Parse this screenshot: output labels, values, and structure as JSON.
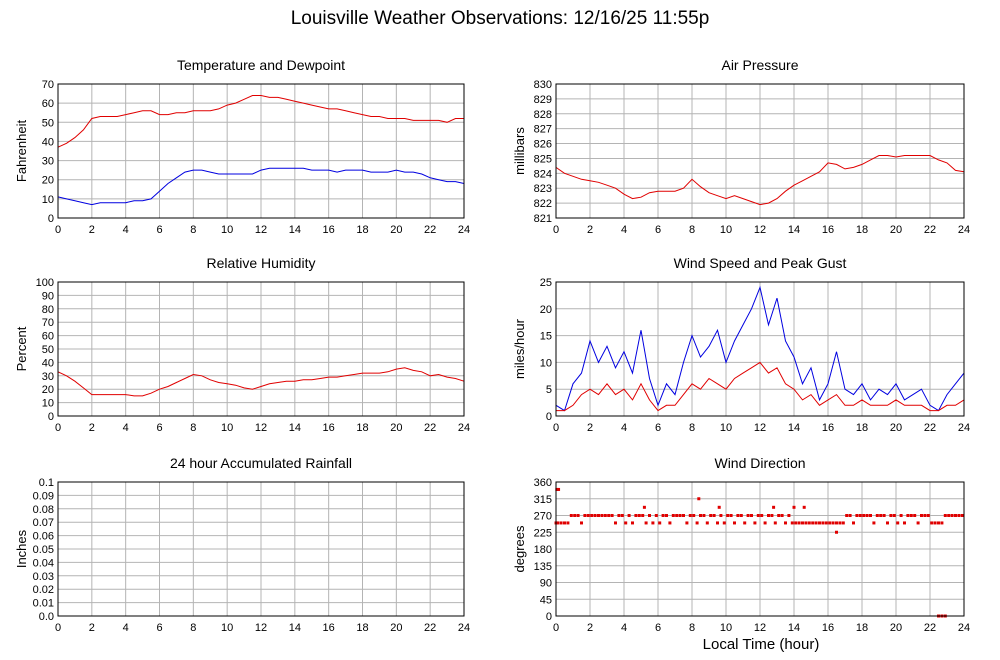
{
  "title": "Louisville Weather Observations: 12/16/25 11:55p",
  "xlabel_shared": "Local Time (hour)",
  "colors": {
    "red": "#e00000",
    "blue": "#0000e0",
    "grid": "#b4b4b4"
  },
  "chart_data": [
    {
      "id": "temp",
      "type": "line",
      "title": "Temperature and Dewpoint",
      "xlabel": "",
      "ylabel": "Fahrenheit",
      "xlim": [
        0,
        24
      ],
      "ylim": [
        0,
        70
      ],
      "xticks": [
        "0",
        "2",
        "4",
        "6",
        "8",
        "10",
        "12",
        "14",
        "16",
        "18",
        "20",
        "22",
        "24"
      ],
      "yticks": [
        "0",
        "10",
        "20",
        "30",
        "40",
        "50",
        "60",
        "70"
      ],
      "series": [
        {
          "color": "#e00000",
          "x": [
            0,
            0.5,
            1,
            1.5,
            2,
            2.5,
            3,
            3.5,
            4,
            4.5,
            5,
            5.5,
            6,
            6.5,
            7,
            7.5,
            8,
            8.5,
            9,
            9.5,
            10,
            10.5,
            11,
            11.5,
            12,
            12.5,
            13,
            13.5,
            14,
            14.5,
            15,
            15.5,
            16,
            16.5,
            17,
            17.5,
            18,
            18.5,
            19,
            19.5,
            20,
            20.5,
            21,
            21.5,
            22,
            22.5,
            23,
            23.5,
            24
          ],
          "y": [
            37,
            39,
            42,
            46,
            52,
            53,
            53,
            53,
            54,
            55,
            56,
            56,
            54,
            54,
            55,
            55,
            56,
            56,
            56,
            57,
            59,
            60,
            62,
            64,
            64,
            63,
            63,
            62,
            61,
            60,
            59,
            58,
            57,
            57,
            56,
            55,
            54,
            53,
            53,
            52,
            52,
            52,
            51,
            51,
            51,
            51,
            50,
            52,
            52
          ]
        },
        {
          "color": "#0000e0",
          "x": [
            0,
            0.5,
            1,
            1.5,
            2,
            2.5,
            3,
            3.5,
            4,
            4.5,
            5,
            5.5,
            6,
            6.5,
            7,
            7.5,
            8,
            8.5,
            9,
            9.5,
            10,
            10.5,
            11,
            11.5,
            12,
            12.5,
            13,
            13.5,
            14,
            14.5,
            15,
            15.5,
            16,
            16.5,
            17,
            17.5,
            18,
            18.5,
            19,
            19.5,
            20,
            20.5,
            21,
            21.5,
            22,
            22.5,
            23,
            23.5,
            24
          ],
          "y": [
            11,
            10,
            9,
            8,
            7,
            8,
            8,
            8,
            8,
            9,
            9,
            10,
            14,
            18,
            21,
            24,
            25,
            25,
            24,
            23,
            23,
            23,
            23,
            23,
            25,
            26,
            26,
            26,
            26,
            26,
            25,
            25,
            25,
            24,
            25,
            25,
            25,
            24,
            24,
            24,
            25,
            24,
            24,
            23,
            21,
            20,
            19,
            19,
            18
          ]
        }
      ]
    },
    {
      "id": "pressure",
      "type": "line",
      "title": "Air Pressure",
      "xlabel": "",
      "ylabel": "millibars",
      "xlim": [
        0,
        24
      ],
      "ylim": [
        821,
        830
      ],
      "xticks": [
        "0",
        "2",
        "4",
        "6",
        "8",
        "10",
        "12",
        "14",
        "16",
        "18",
        "20",
        "22",
        "24"
      ],
      "yticks": [
        "821",
        "822",
        "823",
        "824",
        "825",
        "826",
        "827",
        "828",
        "829",
        "830"
      ],
      "series": [
        {
          "color": "#e00000",
          "x": [
            0,
            0.5,
            1,
            1.5,
            2,
            2.5,
            3,
            3.5,
            4,
            4.5,
            5,
            5.5,
            6,
            6.5,
            7,
            7.5,
            8,
            8.5,
            9,
            9.5,
            10,
            10.5,
            11,
            11.5,
            12,
            12.5,
            13,
            13.5,
            14,
            14.5,
            15,
            15.5,
            16,
            16.5,
            17,
            17.5,
            18,
            18.5,
            19,
            19.5,
            20,
            20.5,
            21,
            21.5,
            22,
            22.5,
            23,
            23.5,
            24
          ],
          "y": [
            824.4,
            824,
            823.8,
            823.6,
            823.5,
            823.4,
            823.2,
            823,
            822.6,
            822.3,
            822.4,
            822.7,
            822.8,
            822.8,
            822.8,
            823,
            823.6,
            823.1,
            822.7,
            822.5,
            822.3,
            822.5,
            822.3,
            822.1,
            821.9,
            822,
            822.3,
            822.8,
            823.2,
            823.5,
            823.8,
            824.1,
            824.7,
            824.6,
            824.3,
            824.4,
            824.6,
            824.9,
            825.2,
            825.2,
            825.1,
            825.2,
            825.2,
            825.2,
            825.2,
            824.9,
            824.7,
            824.2,
            824.1
          ]
        }
      ]
    },
    {
      "id": "humidity",
      "type": "line",
      "title": "Relative Humidity",
      "xlabel": "",
      "ylabel": "Percent",
      "xlim": [
        0,
        24
      ],
      "ylim": [
        0,
        100
      ],
      "xticks": [
        "0",
        "2",
        "4",
        "6",
        "8",
        "10",
        "12",
        "14",
        "16",
        "18",
        "20",
        "22",
        "24"
      ],
      "yticks": [
        "0",
        "10",
        "20",
        "30",
        "40",
        "50",
        "60",
        "70",
        "80",
        "90",
        "100"
      ],
      "series": [
        {
          "color": "#e00000",
          "x": [
            0,
            0.5,
            1,
            1.5,
            2,
            2.5,
            3,
            3.5,
            4,
            4.5,
            5,
            5.5,
            6,
            6.5,
            7,
            7.5,
            8,
            8.5,
            9,
            9.5,
            10,
            10.5,
            11,
            11.5,
            12,
            12.5,
            13,
            13.5,
            14,
            14.5,
            15,
            15.5,
            16,
            16.5,
            17,
            17.5,
            18,
            18.5,
            19,
            19.5,
            20,
            20.5,
            21,
            21.5,
            22,
            22.5,
            23,
            23.5,
            24
          ],
          "y": [
            33,
            30,
            26,
            21,
            16,
            16,
            16,
            16,
            16,
            15,
            15,
            17,
            20,
            22,
            25,
            28,
            31,
            30,
            27,
            25,
            24,
            23,
            21,
            20,
            22,
            24,
            25,
            26,
            26,
            27,
            27,
            28,
            29,
            29,
            30,
            31,
            32,
            32,
            32,
            33,
            35,
            36,
            34,
            33,
            30,
            31,
            29,
            28,
            26
          ]
        }
      ]
    },
    {
      "id": "wind",
      "type": "line",
      "title": "Wind Speed and Peak Gust",
      "xlabel": "",
      "ylabel": "miles/hour",
      "xlim": [
        0,
        24
      ],
      "ylim": [
        0,
        25
      ],
      "xticks": [
        "0",
        "2",
        "4",
        "6",
        "8",
        "10",
        "12",
        "14",
        "16",
        "18",
        "20",
        "22",
        "24"
      ],
      "yticks": [
        "0",
        "5",
        "10",
        "15",
        "20",
        "25"
      ],
      "series": [
        {
          "color": "#0000e0",
          "x": [
            0,
            0.5,
            1,
            1.5,
            2,
            2.5,
            3,
            3.5,
            4,
            4.5,
            5,
            5.5,
            6,
            6.5,
            7,
            7.5,
            8,
            8.5,
            9,
            9.5,
            10,
            10.5,
            11,
            11.5,
            12,
            12.5,
            13,
            13.5,
            14,
            14.5,
            15,
            15.5,
            16,
            16.5,
            17,
            17.5,
            18,
            18.5,
            19,
            19.5,
            20,
            20.5,
            21,
            21.5,
            22,
            22.5,
            23,
            23.5,
            24
          ],
          "y": [
            2,
            1,
            6,
            8,
            14,
            10,
            13,
            9,
            12,
            8,
            16,
            7,
            2,
            6,
            4,
            10,
            15,
            11,
            13,
            16,
            10,
            14,
            17,
            20,
            24,
            17,
            22,
            14,
            11,
            6,
            9,
            3,
            6,
            12,
            5,
            4,
            6,
            3,
            5,
            4,
            6,
            3,
            4,
            5,
            2,
            1,
            4,
            6,
            8
          ]
        },
        {
          "color": "#e00000",
          "x": [
            0,
            0.5,
            1,
            1.5,
            2,
            2.5,
            3,
            3.5,
            4,
            4.5,
            5,
            5.5,
            6,
            6.5,
            7,
            7.5,
            8,
            8.5,
            9,
            9.5,
            10,
            10.5,
            11,
            11.5,
            12,
            12.5,
            13,
            13.5,
            14,
            14.5,
            15,
            15.5,
            16,
            16.5,
            17,
            17.5,
            18,
            18.5,
            19,
            19.5,
            20,
            20.5,
            21,
            21.5,
            22,
            22.5,
            23,
            23.5,
            24
          ],
          "y": [
            1,
            1,
            2,
            4,
            5,
            4,
            6,
            4,
            5,
            3,
            6,
            3,
            1,
            2,
            2,
            4,
            6,
            5,
            7,
            6,
            5,
            7,
            8,
            9,
            10,
            8,
            9,
            6,
            5,
            3,
            4,
            2,
            3,
            4,
            2,
            2,
            3,
            2,
            2,
            2,
            3,
            2,
            2,
            2,
            1,
            1,
            2,
            2,
            3
          ]
        }
      ]
    },
    {
      "id": "rain",
      "type": "line",
      "title": "24 hour Accumulated Rainfall",
      "xlabel": "",
      "ylabel": "Inches",
      "xlim": [
        0,
        24
      ],
      "ylim": [
        0,
        0.1
      ],
      "xticks": [
        "0",
        "2",
        "4",
        "6",
        "8",
        "10",
        "12",
        "14",
        "16",
        "18",
        "20",
        "22",
        "24"
      ],
      "yticks": [
        "0.0",
        "0.01",
        "0.02",
        "0.03",
        "0.04",
        "0.05",
        "0.06",
        "0.07",
        "0.08",
        "0.09",
        "0.1"
      ],
      "series": [
        {
          "color": "#e00000",
          "x": [
            0,
            24
          ],
          "y": [
            0,
            0
          ]
        }
      ]
    },
    {
      "id": "direction",
      "type": "scatter",
      "title": "Wind Direction",
      "xlabel": "Local Time (hour)",
      "ylabel": "degrees",
      "xlim": [
        0,
        24
      ],
      "ylim": [
        0,
        360
      ],
      "xticks": [
        "0",
        "2",
        "4",
        "6",
        "8",
        "10",
        "12",
        "14",
        "16",
        "18",
        "20",
        "22",
        "24"
      ],
      "yticks": [
        "0",
        "45",
        "90",
        "135",
        "180",
        "225",
        "270",
        "315",
        "360"
      ],
      "series": [
        {
          "color": "#e00000",
          "x": [
            0,
            0.1,
            0.3,
            0.5,
            0.7,
            0.9,
            1.1,
            1.3,
            1.5,
            1.7,
            1.9,
            2.1,
            2.3,
            2.5,
            2.7,
            2.9,
            3.1,
            3.3,
            3.5,
            3.7,
            3.9,
            4.1,
            4.3,
            4.5,
            4.7,
            4.9,
            5.1,
            5.3,
            5.5,
            5.7,
            5.9,
            6.1,
            6.3,
            6.5,
            6.7,
            6.9,
            7.1,
            7.3,
            7.5,
            7.7,
            7.9,
            8.1,
            8.3,
            8.5,
            8.7,
            8.9,
            9.1,
            9.3,
            9.5,
            9.7,
            9.9,
            10.1,
            10.3,
            10.5,
            10.7,
            10.9,
            11.1,
            11.3,
            11.5,
            11.7,
            11.9,
            12.1,
            12.3,
            12.5,
            12.7,
            12.9,
            13.1,
            13.3,
            13.5,
            13.7,
            13.9,
            14.1,
            14.3,
            14.5,
            14.7,
            14.9,
            15.1,
            15.3,
            15.5,
            15.7,
            15.9,
            16.1,
            16.3,
            16.5,
            16.7,
            16.9,
            17.1,
            17.3,
            17.5,
            17.7,
            17.9,
            18.1,
            18.3,
            18.5,
            18.7,
            18.9,
            19.1,
            19.3,
            19.5,
            19.7,
            19.9,
            20.1,
            20.3,
            20.5,
            20.7,
            20.9,
            21.1,
            21.3,
            21.5,
            21.7,
            21.9,
            22.1,
            22.3,
            22.5,
            22.7,
            22.9,
            23.1,
            23.3,
            23.5,
            23.7,
            23.9,
            5.2,
            8.4,
            9.6,
            12.8,
            14.0,
            14.6,
            16.5,
            0.05,
            0.15,
            22.5,
            22.7,
            22.9
          ],
          "y": [
            250,
            250,
            250,
            250,
            250,
            270,
            270,
            270,
            250,
            270,
            270,
            270,
            270,
            270,
            270,
            270,
            270,
            270,
            250,
            270,
            270,
            250,
            270,
            250,
            270,
            270,
            270,
            250,
            270,
            250,
            270,
            250,
            270,
            270,
            250,
            270,
            270,
            270,
            270,
            250,
            270,
            270,
            250,
            270,
            270,
            250,
            270,
            270,
            250,
            270,
            250,
            270,
            270,
            250,
            270,
            270,
            250,
            270,
            270,
            250,
            270,
            270,
            250,
            270,
            270,
            250,
            270,
            270,
            250,
            270,
            250,
            250,
            250,
            250,
            250,
            250,
            250,
            250,
            250,
            250,
            250,
            250,
            250,
            250,
            250,
            250,
            270,
            270,
            250,
            270,
            270,
            270,
            270,
            270,
            250,
            270,
            270,
            270,
            250,
            270,
            270,
            250,
            270,
            250,
            270,
            270,
            270,
            250,
            270,
            270,
            270,
            250,
            250,
            250,
            250,
            270,
            270,
            270,
            270,
            270,
            270,
            292,
            315,
            292,
            292,
            292,
            292,
            225,
            340,
            340,
            0,
            0,
            0
          ]
        }
      ]
    }
  ]
}
